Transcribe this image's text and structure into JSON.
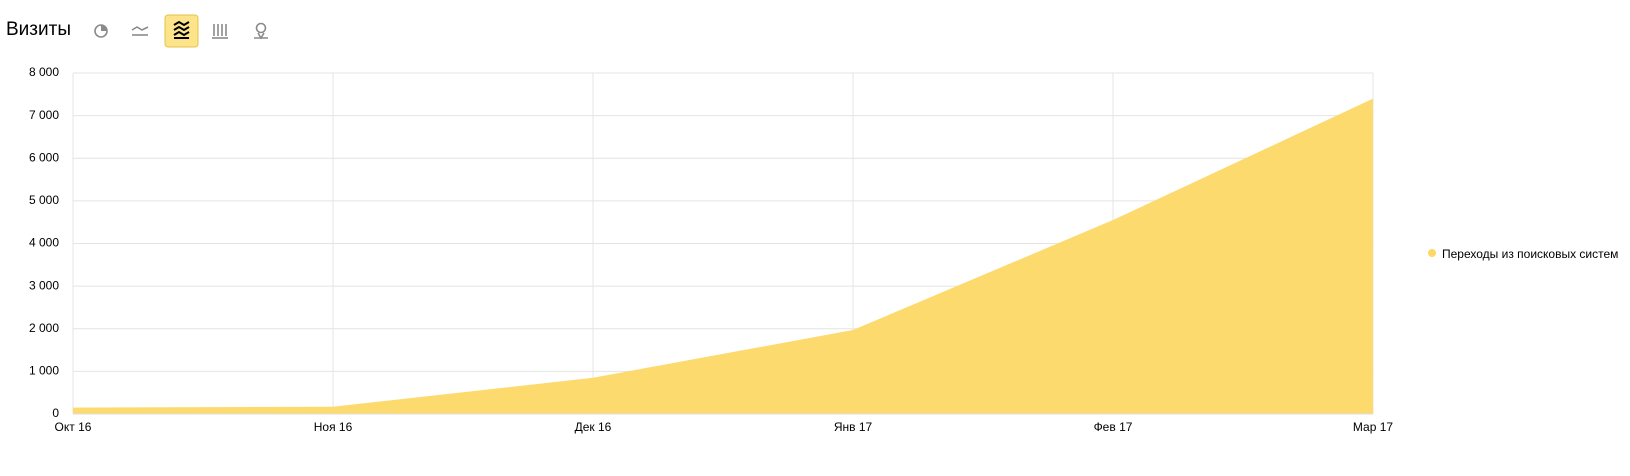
{
  "chart_data": {
    "type": "area",
    "title": "Визиты",
    "categories": [
      "Окт 16",
      "Ноя 16",
      "Дек 16",
      "Янв 17",
      "Фев 17",
      "Мар 17"
    ],
    "series": [
      {
        "name": "Переходы из поисковых систем",
        "color": "#fdd866",
        "values": [
          150,
          170,
          850,
          1970,
          4550,
          7400
        ]
      }
    ],
    "ylim": [
      0,
      8000
    ],
    "yticks": [
      0,
      {
        "value": 1000,
        "label": "1 000"
      },
      {
        "value": 2000,
        "label": "2 000"
      },
      {
        "value": 3000,
        "label": "3 000"
      },
      {
        "value": 4000,
        "label": "4 000"
      },
      {
        "value": 5000,
        "label": "5 000"
      },
      {
        "value": 6000,
        "label": "6 000"
      },
      {
        "value": 7000,
        "label": "7 000"
      },
      {
        "value": 8000,
        "label": "8 000"
      }
    ],
    "grid": true
  }
}
